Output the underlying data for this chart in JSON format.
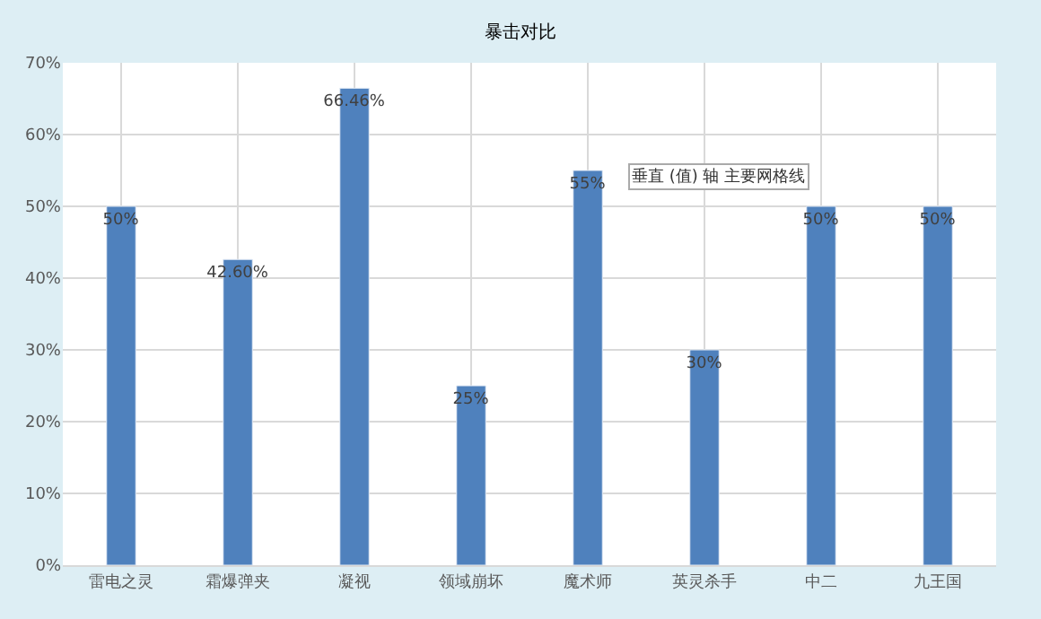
{
  "chart_data": {
    "type": "bar",
    "title": "暴击对比",
    "categories": [
      "雷电之灵",
      "霜爆弹夹",
      "凝视",
      "领域崩坏",
      "魔术师",
      "英灵杀手",
      "中二",
      "九王国"
    ],
    "values": [
      50,
      42.6,
      66.46,
      25,
      55,
      30,
      50,
      50
    ],
    "value_labels": [
      "50%",
      "42.60%",
      "66.46%",
      "25%",
      "55%",
      "30%",
      "50%",
      "50%"
    ],
    "color": "#4f81bd",
    "ylim": [
      0,
      70
    ],
    "yticks": [
      {
        "value": 0,
        "label": "0%"
      },
      {
        "value": 10,
        "label": "10%"
      },
      {
        "value": 20,
        "label": "20%"
      },
      {
        "value": 30,
        "label": "30%"
      },
      {
        "value": 40,
        "label": "40%"
      },
      {
        "value": 50,
        "label": "50%"
      },
      {
        "value": 60,
        "label": "60%"
      },
      {
        "value": 70,
        "label": "70%"
      }
    ],
    "grid": true,
    "annotations": [
      "垂直 (值) 轴 主要网格线"
    ]
  }
}
